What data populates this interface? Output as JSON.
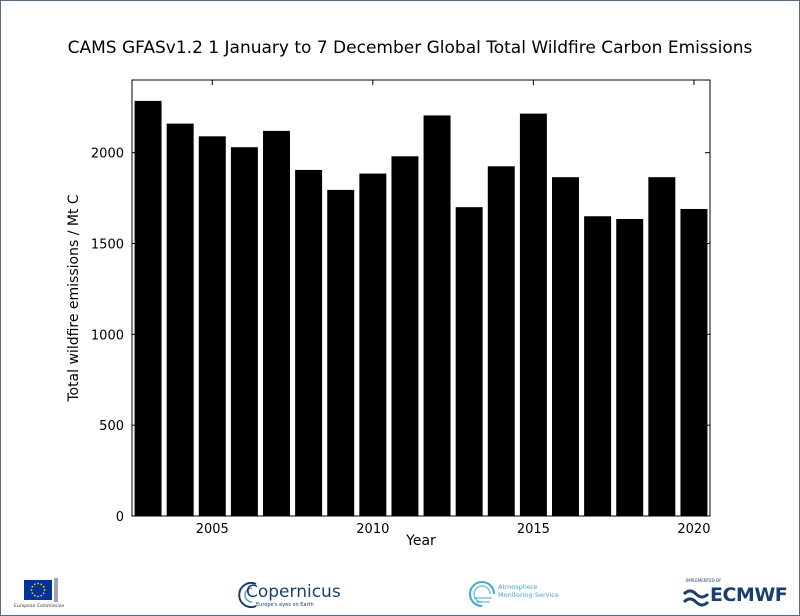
{
  "chart_data": {
    "type": "bar",
    "title": "CAMS GFASv1.2 1 January to 7 December Global Total Wildfire Carbon Emissions",
    "xlabel": "Year",
    "ylabel": "Total wildfire emissions / Mt C",
    "x": [
      2003,
      2004,
      2005,
      2006,
      2007,
      2008,
      2009,
      2010,
      2011,
      2012,
      2013,
      2014,
      2015,
      2016,
      2017,
      2018,
      2019,
      2020
    ],
    "values": [
      2285,
      2160,
      2090,
      2030,
      2120,
      1905,
      1795,
      1885,
      1980,
      2205,
      1700,
      1925,
      2215,
      1865,
      1650,
      1635,
      1865,
      1690
    ],
    "xlim": [
      2002.5,
      2020.5
    ],
    "ylim": [
      0,
      2400
    ],
    "xticks": [
      2005,
      2010,
      2015,
      2020
    ],
    "yticks": [
      0,
      500,
      1000,
      1500,
      2000
    ],
    "bar_color": "#000000",
    "grid": false
  },
  "footer": {
    "ec_text": "European Commission",
    "copernicus_word": "Copernicus",
    "copernicus_tagline": "Europe's eyes on Earth",
    "cams_text_1": "Atmosphere",
    "cams_text_2": "Monitoring Service",
    "ecmwf_implemented": "IMPLEMENTED BY",
    "ecmwf_word": "ECMWF",
    "eu_blue": "#003399",
    "eu_star": "#ffcc00"
  }
}
